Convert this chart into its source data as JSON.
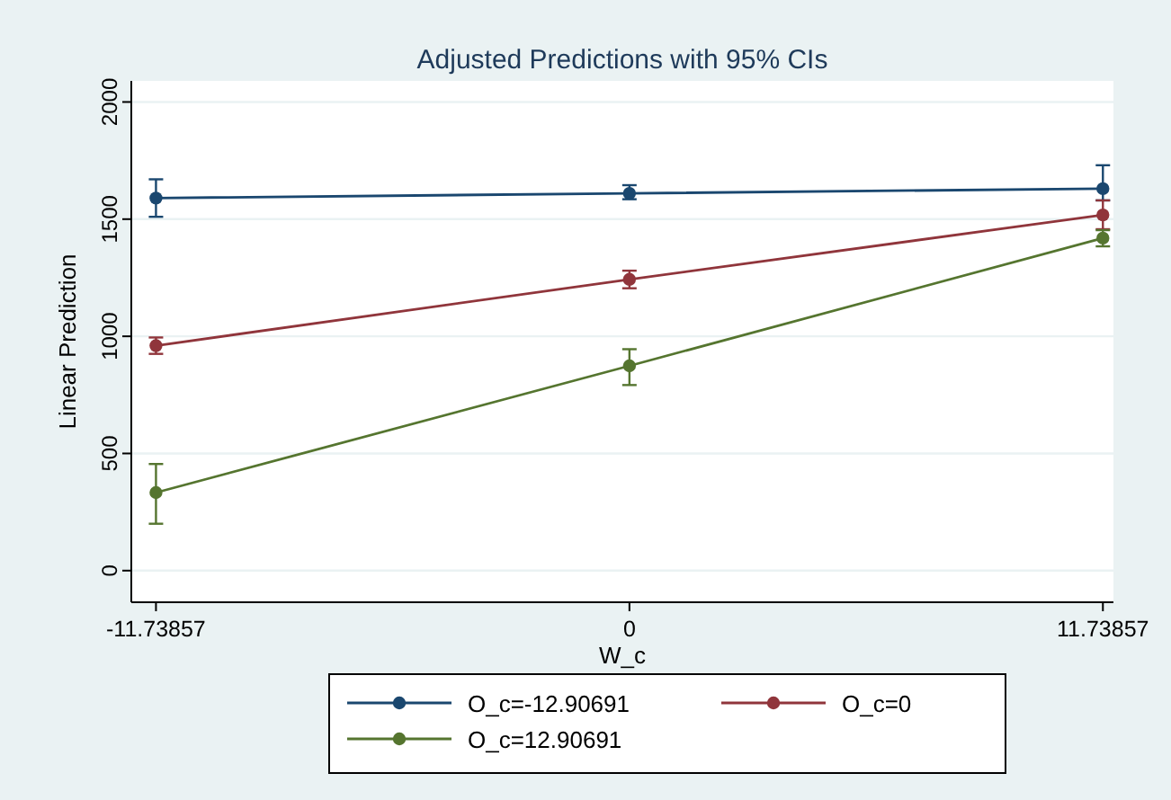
{
  "chart_data": {
    "type": "line",
    "title": "Adjusted Predictions with 95% CIs",
    "xlabel": "W_c",
    "ylabel": "Linear Prediction",
    "x": [
      -11.73857,
      0,
      11.73857
    ],
    "series": [
      {
        "name": "O_c=-12.90691",
        "color": "#1a476f",
        "values": [
          1590,
          1610,
          1630
        ],
        "errors": [
          [
            1510,
            1670
          ],
          [
            1585,
            1645
          ],
          [
            1580,
            1730
          ]
        ]
      },
      {
        "name": "O_c=0",
        "color": "#90353b",
        "values": [
          960,
          1243,
          1518
        ],
        "errors": [
          [
            925,
            995
          ],
          [
            1205,
            1280
          ],
          [
            1457,
            1580
          ]
        ]
      },
      {
        "name": "O_c=12.90691",
        "color": "#55752f",
        "values": [
          333,
          874,
          1419
        ],
        "errors": [
          [
            200,
            455
          ],
          [
            792,
            945
          ],
          [
            1384,
            1453
          ]
        ]
      }
    ],
    "xlim": [
      -12.35,
      12.0
    ],
    "xticks": [
      -11.73857,
      0,
      11.73857
    ],
    "ylim": [
      -135,
      2090
    ],
    "yticks": [
      0,
      500,
      1000,
      1500,
      2000
    ],
    "grid": "y",
    "legend": "bottom",
    "marker": "circle",
    "line_style": "solid"
  }
}
